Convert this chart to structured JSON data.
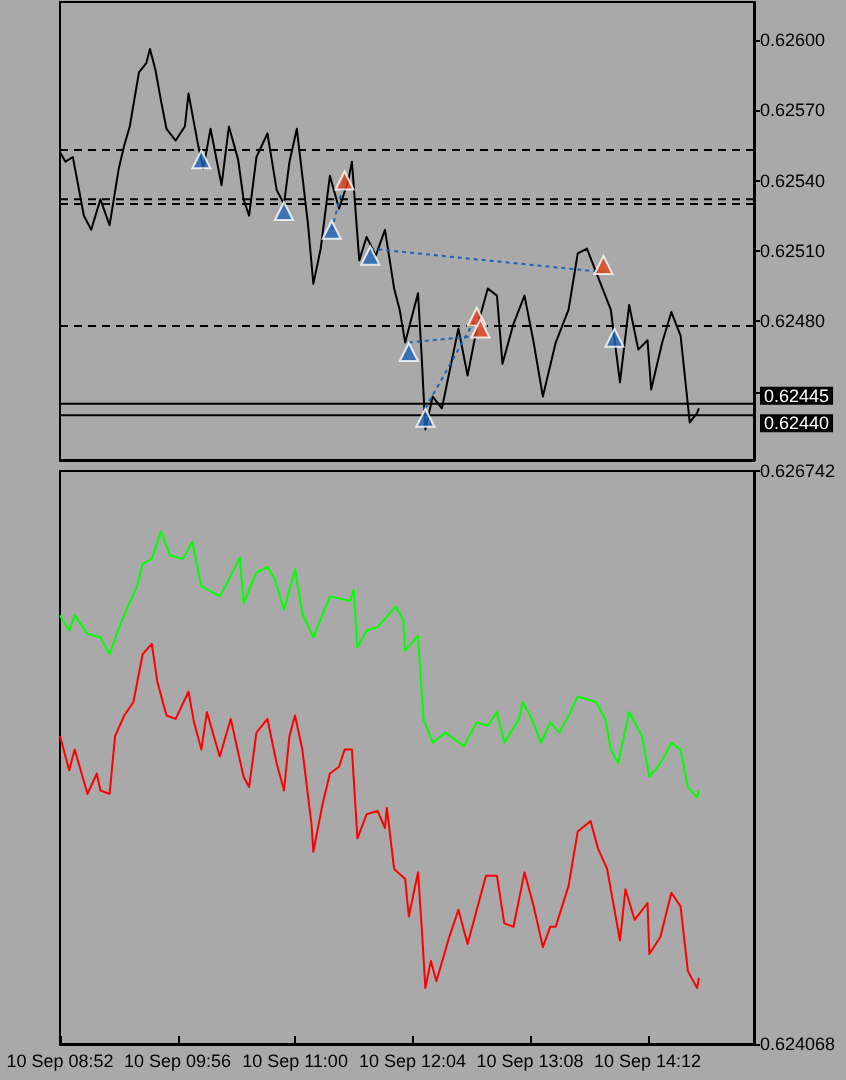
{
  "chart_data": [
    {
      "type": "line",
      "xlim": [
        "--09-10T08:52",
        "--09-10T15:10"
      ],
      "ylim": [
        0.62421,
        0.62616
      ],
      "tick_labels": "y",
      "yticks": [
        {
          "value": 0.626,
          "label": "0.62600"
        },
        {
          "value": 0.6257,
          "label": "0.62570"
        },
        {
          "value": 0.6254,
          "label": "0.62540"
        },
        {
          "value": 0.6251,
          "label": "0.62510"
        },
        {
          "value": 0.6248,
          "label": "0.62480"
        },
        {
          "value": 0.6245,
          "label": null
        }
      ],
      "ref_lines": [
        {
          "axis": "y",
          "value": 0.62553,
          "line_style": "dashed",
          "color": "#000000"
        },
        {
          "axis": "y",
          "value": 0.62532,
          "line_style": "dashed",
          "color": "#000000"
        },
        {
          "axis": "y",
          "value": 0.6253,
          "line_style": "dashed",
          "color": "#000000"
        },
        {
          "axis": "y",
          "value": 0.62478,
          "line_style": "dashed",
          "color": "#000000"
        },
        {
          "axis": "y",
          "value": 0.62445,
          "label": "0.62445",
          "line_style": "solid",
          "color": "#000000"
        },
        {
          "axis": "y",
          "value": 0.6244,
          "label": "0.62440",
          "line_style": "solid",
          "color": "#000000"
        }
      ],
      "series": [
        {
          "type": "line",
          "color": "#000000",
          "line_style": "solid",
          "x": [
            "--09-10T08:52",
            "--09-10T08:55",
            "--09-10T08:59",
            "--09-10T09:05",
            "--09-10T09:09",
            "--09-10T09:14",
            "--09-10T09:19",
            "--09-10T09:24",
            "--09-10T09:27",
            "--09-10T09:30",
            "--09-10T09:35",
            "--09-10T09:39",
            "--09-10T09:41",
            "--09-10T09:44",
            "--09-10T09:47",
            "--09-10T09:50",
            "--09-10T09:55",
            "--09-10T10:00",
            "--09-10T10:02",
            "--09-10T10:07",
            "--09-10T10:10",
            "--09-10T10:14",
            "--09-10T10:20",
            "--09-10T10:24",
            "--09-10T10:29",
            "--09-10T10:32",
            "--09-10T10:35",
            "--09-10T10:39",
            "--09-10T10:45",
            "--09-10T10:50",
            "--09-10T10:54",
            "--09-10T10:57",
            "--09-10T11:01",
            "--09-10T11:04",
            "--09-10T11:07",
            "--09-10T11:10",
            "--09-10T11:14",
            "--09-10T11:19",
            "--09-10T11:24",
            "--09-10T11:29",
            "--09-10T11:31",
            "--09-10T11:35",
            "--09-10T11:39",
            "--09-10T11:44",
            "--09-10T11:49",
            "--09-10T11:54",
            "--09-10T11:57",
            "--09-10T12:00",
            "--09-10T12:07",
            "--09-10T12:09",
            "--09-10T12:11",
            "--09-10T12:15",
            "--09-10T12:20",
            "--09-10T12:29",
            "--09-10T12:34",
            "--09-10T12:39",
            "--09-10T12:45",
            "--09-10T12:50",
            "--09-10T12:53",
            "--09-10T12:59",
            "--09-10T13:05",
            "--09-10T13:10",
            "--09-10T13:15",
            "--09-10T13:22",
            "--09-10T13:29",
            "--09-10T13:34",
            "--09-10T13:39",
            "--09-10T13:45",
            "--09-10T13:52",
            "--09-10T13:57",
            "--09-10T14:02",
            "--09-10T14:07",
            "--09-10T14:12",
            "--09-10T14:14",
            "--09-10T14:20",
            "--09-10T14:25",
            "--09-10T14:30",
            "--09-10T14:35",
            "--09-10T14:39",
            "--09-10T14:40"
          ],
          "values": [
            0.62552,
            0.62548,
            0.6255,
            0.62525,
            0.62519,
            0.62532,
            0.62521,
            0.62545,
            0.62555,
            0.62563,
            0.62586,
            0.6259,
            0.62596,
            0.62587,
            0.62574,
            0.62562,
            0.62557,
            0.62563,
            0.62577,
            0.62556,
            0.62545,
            0.62562,
            0.62538,
            0.62563,
            0.62549,
            0.62532,
            0.62525,
            0.6255,
            0.6256,
            0.62536,
            0.6253,
            0.62548,
            0.62562,
            0.62542,
            0.62522,
            0.62496,
            0.62511,
            0.62542,
            0.62528,
            0.6254,
            0.62548,
            0.62506,
            0.62516,
            0.62508,
            0.62519,
            0.62494,
            0.62485,
            0.62471,
            0.62492,
            0.62465,
            0.62434,
            0.62448,
            0.62443,
            0.62477,
            0.62457,
            0.62477,
            0.62494,
            0.62491,
            0.62462,
            0.62479,
            0.62491,
            0.62471,
            0.62448,
            0.62471,
            0.62485,
            0.62509,
            0.62511,
            0.62499,
            0.62485,
            0.62454,
            0.62487,
            0.62468,
            0.62472,
            0.62451,
            0.62471,
            0.62484,
            0.62474,
            0.62437,
            0.62441,
            0.62443
          ]
        },
        {
          "type": "line",
          "color": "#1e64b4",
          "line_style": "dotted",
          "x": [
            "--09-10T11:20",
            "--09-10T11:27"
          ],
          "values": [
            0.62519,
            0.6254
          ]
        },
        {
          "type": "line",
          "color": "#1e64b4",
          "line_style": "dotted",
          "x": [
            "--09-10T11:41",
            "--09-10T13:48"
          ],
          "values": [
            0.62511,
            0.62501
          ]
        },
        {
          "type": "line",
          "color": "#1e64b4",
          "line_style": "dotted",
          "x": [
            "--09-10T12:02",
            "--09-10T12:41"
          ],
          "values": [
            0.62471,
            0.62474
          ]
        },
        {
          "type": "line",
          "color": "#1e64b4",
          "line_style": "dotted",
          "x": [
            "--09-10T12:11",
            "--09-10T12:39"
          ],
          "values": [
            0.62443,
            0.62482
          ]
        },
        {
          "type": "scatter",
          "color": "#1e64b4",
          "marker": "triangle",
          "x": [
            "--09-10T10:09",
            "--09-10T10:54",
            "--09-10T11:20",
            "--09-10T11:41",
            "--09-10T12:02",
            "--09-10T12:11",
            "--09-10T13:54"
          ],
          "values": [
            0.62549,
            0.62527,
            0.62519,
            0.62508,
            0.62467,
            0.62439,
            0.62473
          ]
        },
        {
          "type": "scatter",
          "color": "#e0401c",
          "marker": "triangle",
          "x": [
            "--09-10T11:27",
            "--09-10T12:39",
            "--09-10T12:41",
            "--09-10T13:48"
          ],
          "values": [
            0.6254,
            0.62482,
            0.62477,
            0.62504
          ]
        }
      ]
    },
    {
      "type": "line",
      "xlim": [
        "--09-10T08:52",
        "--09-10T15:10"
      ],
      "ylim": [
        0.624068,
        0.626742
      ],
      "yticks": [
        0.624068,
        0.626742
      ],
      "xticks": [
        {
          "value": "--09-10T08:52",
          "label": "10 Sep 08:52"
        },
        {
          "value": "--09-10T09:56",
          "label": "10 Sep 09:56"
        },
        {
          "value": "--09-10T11:00",
          "label": "10 Sep 11:00"
        },
        {
          "value": "--09-10T12:04",
          "label": "10 Sep 12:04"
        },
        {
          "value": "--09-10T13:08",
          "label": "10 Sep 13:08"
        },
        {
          "value": "--09-10T14:12",
          "label": "10 Sep 14:12"
        }
      ],
      "series": [
        {
          "type": "line",
          "color": "#00ff00",
          "line_style": "solid",
          "x": [
            "--09-10T08:52",
            "--09-10T08:57",
            "--09-10T09:00",
            "--09-10T09:07",
            "--09-10T09:14",
            "--09-10T09:19",
            "--09-10T09:25",
            "--09-10T09:29",
            "--09-10T09:34",
            "--09-10T09:37",
            "--09-10T09:42",
            "--09-10T09:47",
            "--09-10T09:52",
            "--09-10T09:59",
            "--09-10T10:04",
            "--09-10T10:09",
            "--09-10T10:19",
            "--09-10T10:24",
            "--09-10T10:30",
            "--09-10T10:32",
            "--09-10T10:39",
            "--09-10T10:45",
            "--09-10T10:49",
            "--09-10T10:54",
            "--09-10T11:00",
            "--09-10T11:04",
            "--09-10T11:10",
            "--09-10T11:19",
            "--09-10T11:30",
            "--09-10T11:32",
            "--09-10T11:34",
            "--09-10T11:39",
            "--09-10T11:45",
            "--09-10T11:50",
            "--09-10T11:55",
            "--09-10T11:59",
            "--09-10T12:00",
            "--09-10T12:07",
            "--09-10T12:10",
            "--09-10T12:15",
            "--09-10T12:22",
            "--09-10T12:32",
            "--09-10T12:39",
            "--09-10T12:45",
            "--09-10T12:50",
            "--09-10T12:54",
            "--09-10T13:02",
            "--09-10T13:04",
            "--09-10T13:09",
            "--09-10T13:14",
            "--09-10T13:19",
            "--09-10T13:24",
            "--09-10T13:30",
            "--09-10T13:34",
            "--09-10T13:44",
            "--09-10T13:49",
            "--09-10T13:52",
            "--09-10T13:56",
            "--09-10T14:02",
            "--09-10T14:09",
            "--09-10T14:13",
            "--09-10T14:19",
            "--09-10T14:25",
            "--09-10T14:30",
            "--09-10T14:34",
            "--09-10T14:39",
            "--09-10T14:40"
          ],
          "values": [
            0.626068,
            0.625998,
            0.626068,
            0.625982,
            0.625966,
            0.625887,
            0.62603,
            0.62611,
            0.626205,
            0.626307,
            0.626332,
            0.626459,
            0.626348,
            0.626332,
            0.626412,
            0.626205,
            0.626157,
            0.626237,
            0.626339,
            0.626125,
            0.626269,
            0.626294,
            0.626237,
            0.626094,
            0.626284,
            0.626078,
            0.625966,
            0.626157,
            0.626135,
            0.626189,
            0.625919,
            0.625998,
            0.626014,
            0.626062,
            0.62611,
            0.626046,
            0.625903,
            0.625973,
            0.625585,
            0.625474,
            0.625521,
            0.625458,
            0.625569,
            0.625553,
            0.625617,
            0.625474,
            0.625585,
            0.625664,
            0.625585,
            0.625474,
            0.625569,
            0.625521,
            0.625617,
            0.62569,
            0.625664,
            0.625585,
            0.625442,
            0.625378,
            0.625617,
            0.625505,
            0.625315,
            0.625378,
            0.625474,
            0.625442,
            0.625267,
            0.625219,
            0.625251
          ]
        },
        {
          "type": "line",
          "color": "#ff0000",
          "line_style": "solid",
          "x": [
            "--09-10T08:52",
            "--09-10T08:57",
            "--09-10T09:00",
            "--09-10T09:07",
            "--09-10T09:12",
            "--09-10T09:14",
            "--09-10T09:19",
            "--09-10T09:22",
            "--09-10T09:27",
            "--09-10T09:32",
            "--09-10T09:37",
            "--09-10T09:42",
            "--09-10T09:45",
            "--09-10T09:50",
            "--09-10T09:55",
            "--09-10T10:02",
            "--09-10T10:05",
            "--09-10T10:09",
            "--09-10T10:12",
            "--09-10T10:19",
            "--09-10T10:25",
            "--09-10T10:32",
            "--09-10T10:35",
            "--09-10T10:39",
            "--09-10T10:45",
            "--09-10T10:50",
            "--09-10T10:54",
            "--09-10T10:57",
            "--09-10T11:00",
            "--09-10T11:04",
            "--09-10T11:09",
            "--09-10T11:10",
            "--09-10T11:15",
            "--09-10T11:19",
            "--09-10T11:24",
            "--09-10T11:27",
            "--09-10T11:31",
            "--09-10T11:34",
            "--09-10T11:39",
            "--09-10T11:45",
            "--09-10T11:49",
            "--09-10T11:50",
            "--09-10T11:54",
            "--09-10T12:00",
            "--09-10T12:02",
            "--09-10T12:07",
            "--09-10T12:09",
            "--09-10T12:11",
            "--09-10T12:14",
            "--09-10T12:17",
            "--09-10T12:24",
            "--09-10T12:29",
            "--09-10T12:34",
            "--09-10T12:39",
            "--09-10T12:44",
            "--09-10T12:50",
            "--09-10T12:54",
            "--09-10T12:59",
            "--09-10T13:05",
            "--09-10T13:10",
            "--09-10T13:15",
            "--09-10T13:19",
            "--09-10T13:22",
            "--09-10T13:29",
            "--09-10T13:34",
            "--09-10T13:41",
            "--09-10T13:45",
            "--09-10T13:50",
            "--09-10T13:57",
            "--09-10T14:00",
            "--09-10T14:05",
            "--09-10T14:12",
            "--09-10T14:13",
            "--09-10T14:19",
            "--09-10T14:25",
            "--09-10T14:30",
            "--09-10T14:34",
            "--09-10T14:39",
            "--09-10T14:40"
          ],
          "values": [
            0.625505,
            0.625346,
            0.625442,
            0.625235,
            0.62533,
            0.625251,
            0.625235,
            0.625505,
            0.625601,
            0.625664,
            0.625887,
            0.625935,
            0.62576,
            0.625601,
            0.625585,
            0.625712,
            0.625569,
            0.625442,
            0.625617,
            0.62541,
            0.625585,
            0.625315,
            0.625267,
            0.625521,
            0.625585,
            0.625378,
            0.625251,
            0.625505,
            0.625601,
            0.625442,
            0.625092,
            0.624965,
            0.625187,
            0.62533,
            0.625362,
            0.625442,
            0.625442,
            0.625028,
            0.62514,
            0.625156,
            0.625076,
            0.625171,
            0.624885,
            0.624838,
            0.624663,
            0.624869,
            0.624615,
            0.624329,
            0.624456,
            0.624361,
            0.624567,
            0.624694,
            0.624535,
            0.624694,
            0.624853,
            0.624853,
            0.624631,
            0.624615,
            0.624869,
            0.624711,
            0.62452,
            0.624615,
            0.624615,
            0.624806,
            0.62506,
            0.625108,
            0.624981,
            0.624885,
            0.624551,
            0.62479,
            0.624647,
            0.624726,
            0.624488,
            0.624567,
            0.624774,
            0.62471,
            0.624408,
            0.624329,
            0.624376
          ]
        }
      ]
    }
  ]
}
